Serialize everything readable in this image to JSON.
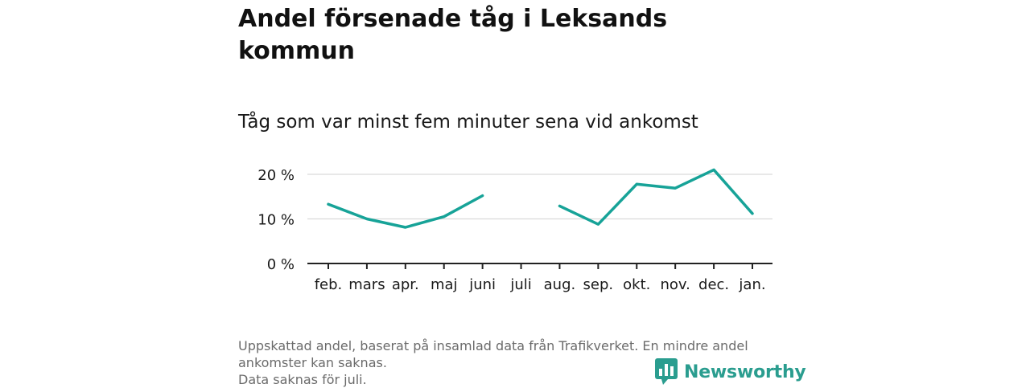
{
  "title": "Andel försenade tåg i Leksands kommun",
  "subtitle": "Tåg som var minst fem minuter sena vid ankomst",
  "footnote": {
    "line1": "Uppskattad andel, baserat på insamlad data från Trafikverket. En mindre andel ankomster kan saknas.",
    "line2": "Data saknas för juli."
  },
  "logo": {
    "text": "Newsworthy",
    "icon": "newsworthy-bar-chart-icon",
    "color": "#2a9d8f"
  },
  "colors": {
    "line": "#17a398",
    "grid": "#d9d9d9",
    "axis": "#222222"
  },
  "chart_data": {
    "type": "line",
    "title": "Andel försenade tåg i Leksands kommun",
    "subtitle": "Tåg som var minst fem minuter sena vid ankomst",
    "categories": [
      "feb.",
      "mars",
      "apr.",
      "maj",
      "juni",
      "juli",
      "aug.",
      "sep.",
      "okt.",
      "nov.",
      "dec.",
      "jan."
    ],
    "values": [
      13.3,
      10.0,
      8.1,
      10.5,
      15.2,
      null,
      12.9,
      8.8,
      17.8,
      16.9,
      21.0,
      11.2
    ],
    "ylim": [
      0,
      20
    ],
    "yticks": [
      0,
      10,
      20
    ],
    "ytick_labels": [
      "0 %",
      "10 %",
      "20 %"
    ],
    "grid": true
  }
}
